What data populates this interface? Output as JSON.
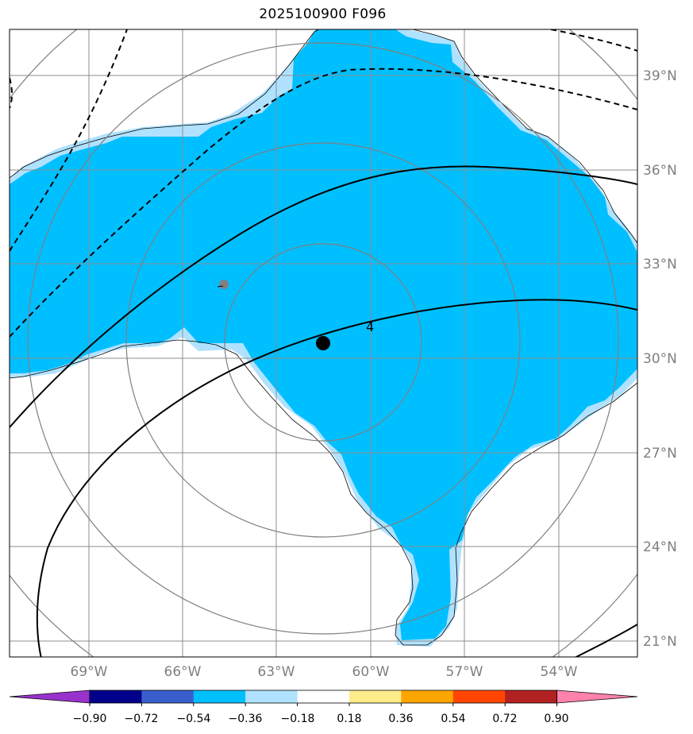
{
  "title": "2025100900 F096",
  "lat_labels": [
    "39°N",
    "36°N",
    "33°N",
    "30°N",
    "27°N",
    "24°N",
    "21°N"
  ],
  "lon_labels": [
    "69°W",
    "66°W",
    "63°W",
    "60°W",
    "57°W",
    "54°W"
  ],
  "contour_label": "4",
  "colorbar": {
    "colors": [
      "#9932cc",
      "#00008b",
      "#3a5fcd",
      "#00bfff",
      "#b0e2ff",
      "#ffffff",
      "#ffec8b",
      "#ffa500",
      "#ff4500",
      "#b22222",
      "#ff82ab"
    ],
    "tick_labels": [
      "−0.90",
      "−0.72",
      "−0.54",
      "−0.36",
      "−0.18",
      "0.18",
      "0.36",
      "0.54",
      "0.72",
      "0.90"
    ]
  },
  "colors": {
    "fill_main": "#00bfff",
    "fill_edge": "#b0e2ff",
    "grid": "#8c8c8c",
    "range_rings": "#808080",
    "center_marker": "#000000",
    "secondary_marker": "#808080"
  }
}
